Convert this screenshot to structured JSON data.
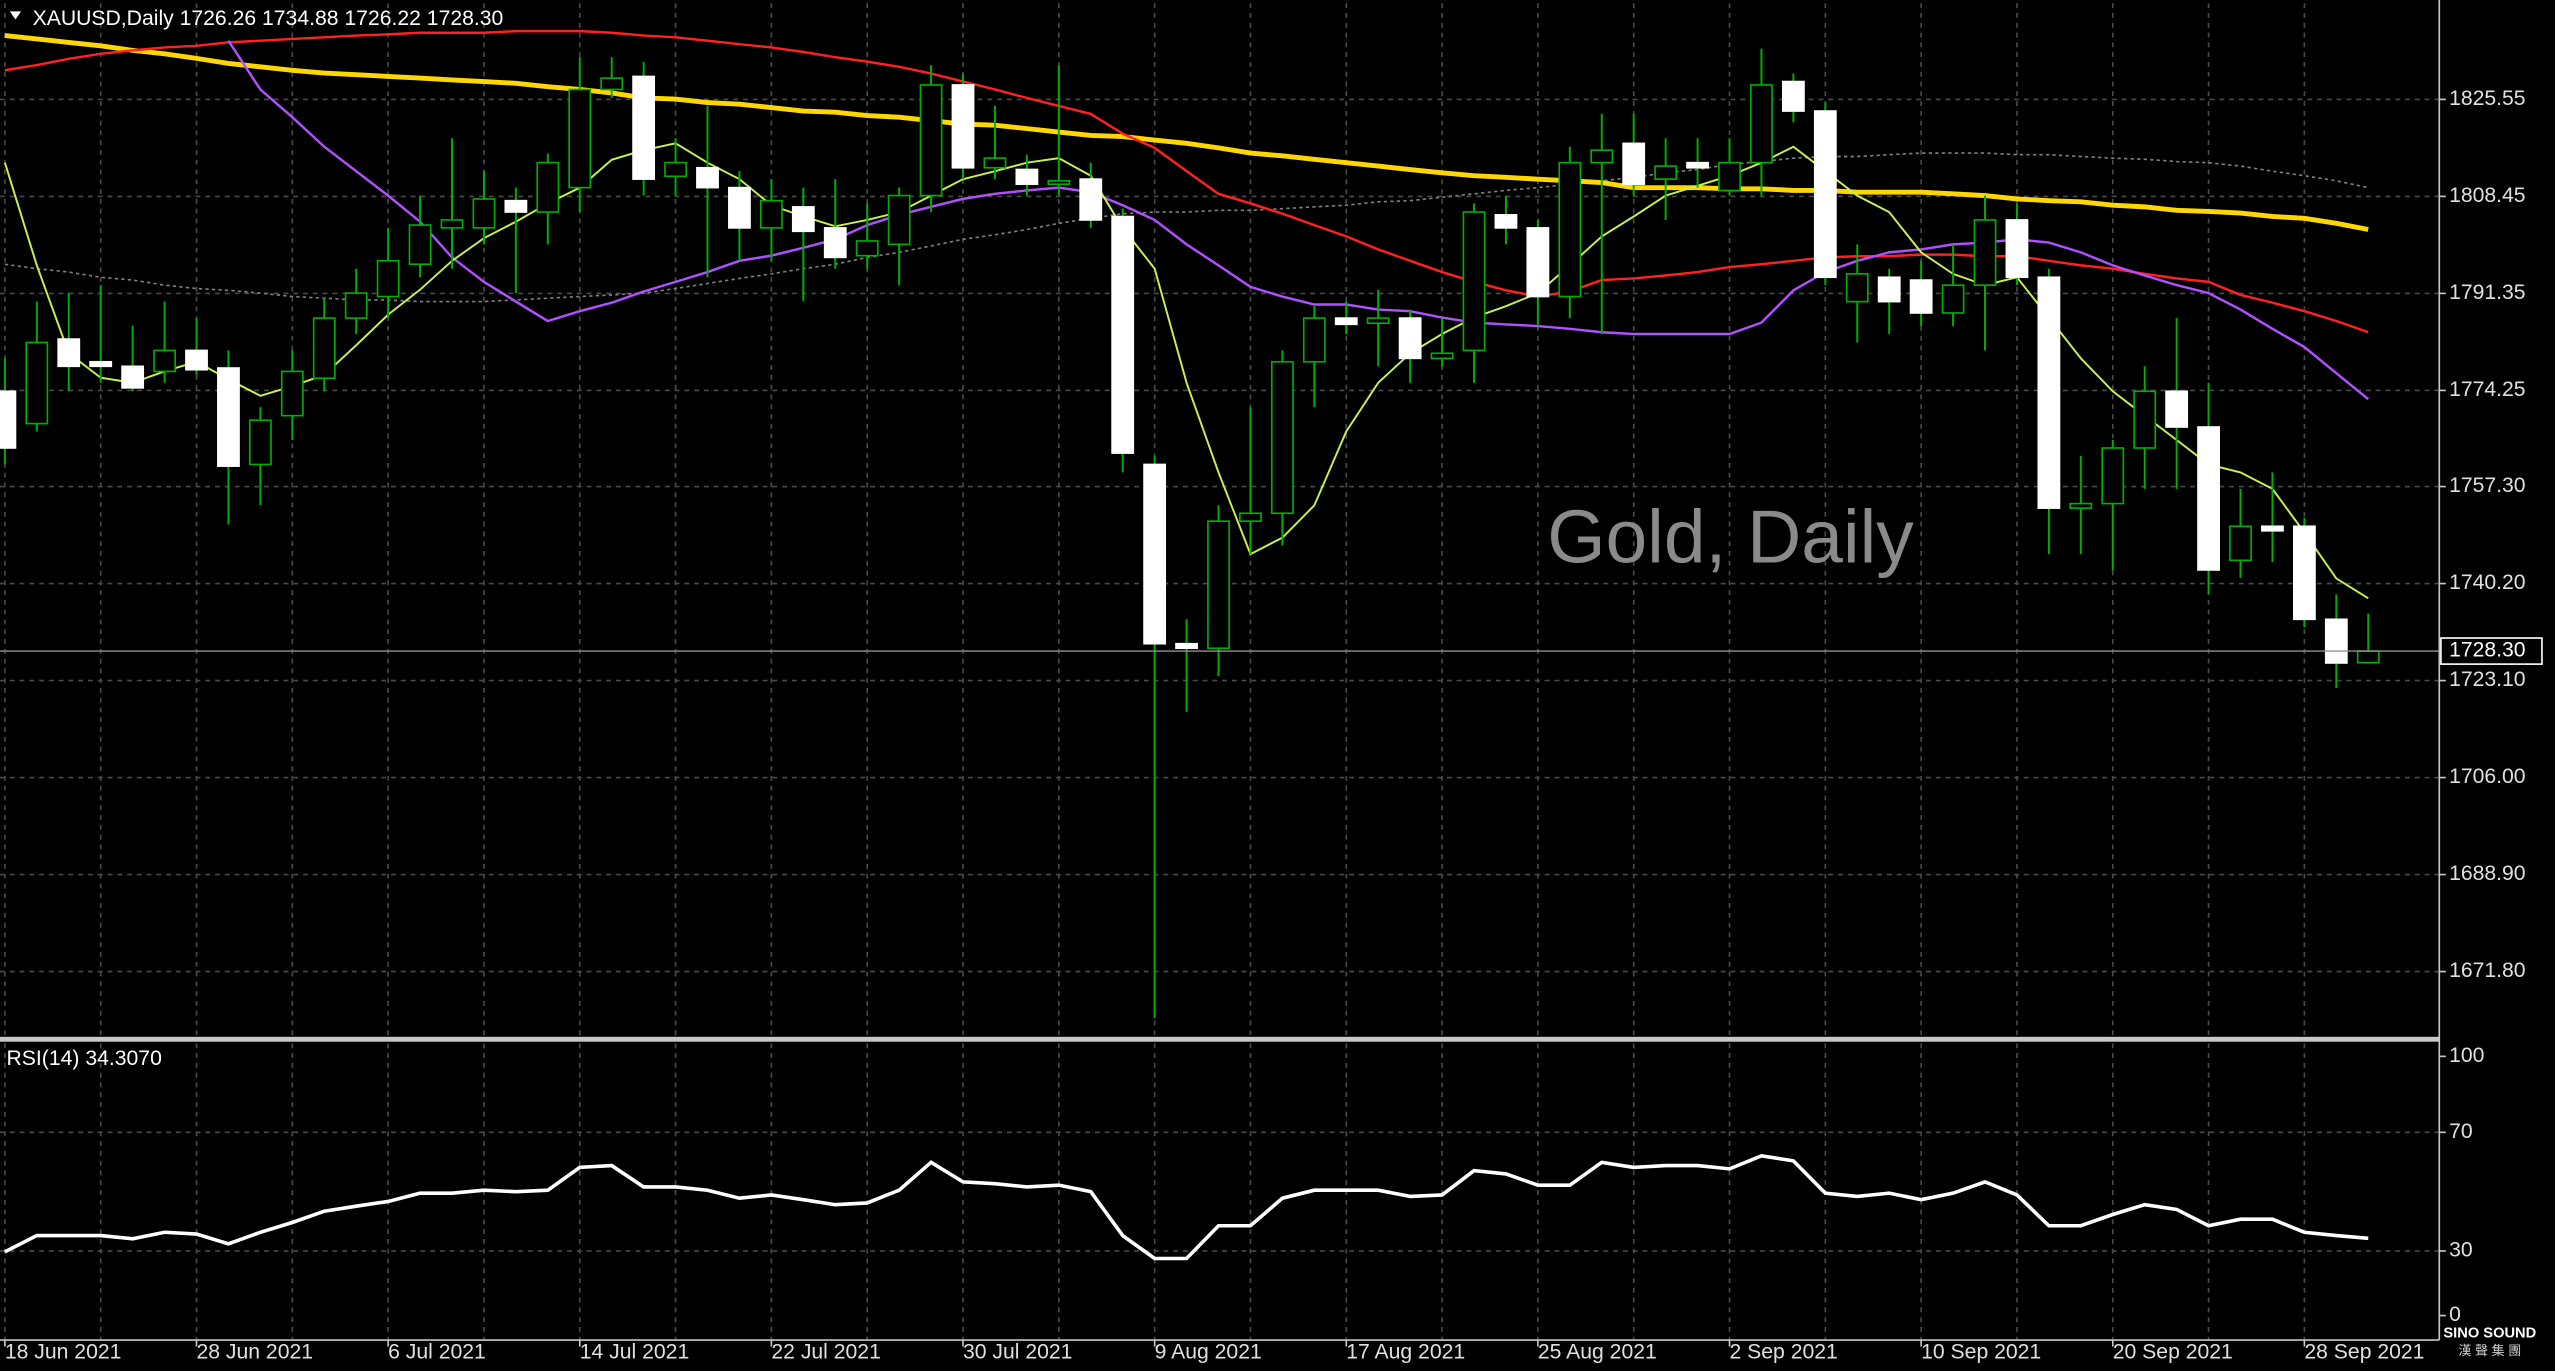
{
  "chart_data": {
    "type": "candlestick",
    "header": "XAUUSD,Daily  1726.26 1734.88 1726.22 1728.30",
    "watermark": "Gold, Daily",
    "logo": "SINO SOUND",
    "logo_sub": "漢 聲 集 團",
    "categories": [
      "18 Jun 2021",
      null,
      null,
      null,
      null,
      null,
      "28 Jun 2021",
      null,
      null,
      null,
      null,
      null,
      "6 Jul 2021",
      null,
      null,
      null,
      null,
      null,
      "14 Jul 2021",
      null,
      null,
      null,
      null,
      null,
      "22 Jul 2021",
      null,
      null,
      null,
      null,
      null,
      "30 Jul 2021",
      null,
      null,
      null,
      null,
      null,
      "9 Aug 2021",
      null,
      null,
      null,
      null,
      null,
      "17 Aug 2021",
      null,
      null,
      null,
      null,
      null,
      "25 Aug 2021",
      null,
      null,
      null,
      null,
      null,
      "2 Sep 2021",
      null,
      null,
      null,
      null,
      null,
      "10 Sep 2021",
      null,
      null,
      null,
      null,
      null,
      "20 Sep 2021",
      null,
      null,
      null,
      null,
      null,
      "28 Sep 2021",
      null,
      null
    ],
    "open": [
      1774.1,
      1768.4,
      1783.3,
      1779.3,
      1778.5,
      1777.6,
      1781.3,
      1778.2,
      1761.2,
      1769.8,
      1776.4,
      1787.0,
      1790.8,
      1796.5,
      1802.9,
      1802.9,
      1807.7,
      1805.7,
      1810.0,
      1827.3,
      1829.6,
      1812.0,
      1813.5,
      1810.0,
      1802.9,
      1806.6,
      1802.9,
      1798.0,
      1800.0,
      1808.6,
      1828.1,
      1813.5,
      1813.2,
      1810.6,
      1811.5,
      1804.9,
      1761.2,
      1729.6,
      1728.8,
      1751.2,
      1752.6,
      1779.3,
      1787.0,
      1786.1,
      1787.0,
      1779.9,
      1781.3,
      1805.2,
      1802.9,
      1790.8,
      1814.4,
      1817.8,
      1811.5,
      1814.4,
      1809.5,
      1814.4,
      1828.7,
      1823.5,
      1789.9,
      1794.2,
      1793.7,
      1787.9,
      1792.8,
      1804.3,
      1794.2,
      1753.5,
      1754.3,
      1764.1,
      1774.1,
      1767.8,
      1744.3,
      1750.3,
      1750.3,
      1733.9,
      1726.26
    ],
    "high": [
      1779.9,
      1789.9,
      1791.4,
      1792.8,
      1785.6,
      1789.9,
      1787.0,
      1781.3,
      1771.3,
      1781.3,
      1790.5,
      1795.7,
      1802.9,
      1808.6,
      1818.7,
      1812.9,
      1810.0,
      1816.0,
      1833.0,
      1833.0,
      1832.2,
      1818.7,
      1824.4,
      1812.9,
      1811.5,
      1810.0,
      1811.5,
      1807.2,
      1810.0,
      1831.6,
      1830.1,
      1824.4,
      1815.8,
      1831.6,
      1814.4,
      1806.3,
      1762.7,
      1733.9,
      1754.0,
      1771.3,
      1781.3,
      1789.1,
      1789.9,
      1792.0,
      1788.5,
      1787.0,
      1807.2,
      1808.6,
      1804.3,
      1817.2,
      1823.0,
      1823.0,
      1818.7,
      1818.7,
      1818.7,
      1834.5,
      1830.1,
      1825.0,
      1800.0,
      1795.7,
      1797.1,
      1800.0,
      1808.6,
      1807.2,
      1795.7,
      1762.7,
      1765.5,
      1778.5,
      1787.0,
      1775.6,
      1756.9,
      1759.8,
      1751.8,
      1738.3,
      1734.88
    ],
    "low": [
      1761.2,
      1767.0,
      1774.1,
      1775.6,
      1774.1,
      1775.6,
      1777.0,
      1750.6,
      1754.0,
      1765.5,
      1774.1,
      1784.2,
      1787.0,
      1794.2,
      1795.7,
      1800.0,
      1791.4,
      1800.0,
      1805.7,
      1825.8,
      1808.6,
      1808.6,
      1794.2,
      1797.1,
      1797.1,
      1790.0,
      1795.7,
      1795.7,
      1792.8,
      1805.7,
      1811.5,
      1811.5,
      1808.6,
      1808.6,
      1802.9,
      1759.8,
      1663.6,
      1717.6,
      1723.9,
      1745.4,
      1746.9,
      1771.3,
      1784.2,
      1778.5,
      1775.6,
      1778.5,
      1775.6,
      1800.0,
      1785.6,
      1787.0,
      1784.2,
      1808.6,
      1804.3,
      1810.0,
      1808.6,
      1808.6,
      1821.5,
      1792.8,
      1782.7,
      1784.2,
      1785.6,
      1785.6,
      1781.3,
      1792.8,
      1745.4,
      1745.4,
      1742.5,
      1756.9,
      1756.9,
      1738.3,
      1741.2,
      1744.0,
      1732.5,
      1721.8,
      1726.22
    ],
    "close": [
      1764.1,
      1782.7,
      1778.5,
      1778.5,
      1774.7,
      1781.3,
      1777.9,
      1760.9,
      1769.0,
      1777.6,
      1787.0,
      1791.4,
      1797.1,
      1803.4,
      1804.3,
      1808.0,
      1805.7,
      1814.4,
      1827.3,
      1829.3,
      1811.5,
      1814.4,
      1810.0,
      1802.9,
      1807.7,
      1802.3,
      1797.7,
      1800.6,
      1808.6,
      1828.1,
      1813.5,
      1815.2,
      1810.6,
      1811.2,
      1804.3,
      1763.2,
      1729.6,
      1728.8,
      1751.2,
      1752.6,
      1779.3,
      1787.0,
      1785.9,
      1787.0,
      1779.9,
      1780.8,
      1805.7,
      1802.9,
      1790.8,
      1814.4,
      1816.6,
      1810.6,
      1813.8,
      1813.5,
      1814.4,
      1828.1,
      1823.5,
      1794.2,
      1794.8,
      1789.9,
      1787.9,
      1792.8,
      1804.3,
      1794.2,
      1753.5,
      1754.3,
      1764.1,
      1774.1,
      1767.8,
      1742.6,
      1750.3,
      1749.5,
      1733.9,
      1726.2,
      1728.3
    ],
    "bull_color": "#000000",
    "bear_color": "#ffffff",
    "wick_color": "#00b000",
    "series": [
      {
        "color": "#808080",
        "values": [
          1796.5,
          1795.7,
          1795.1,
          1794.2,
          1793.7,
          1792.8,
          1792.2,
          1791.9,
          1791.4,
          1790.8,
          1790.5,
          1790.2,
          1790.2,
          1789.9,
          1789.9,
          1789.9,
          1790.2,
          1790.5,
          1790.8,
          1791.1,
          1791.4,
          1792.2,
          1793.1,
          1794.0,
          1794.8,
          1795.7,
          1796.5,
          1797.7,
          1798.6,
          1799.7,
          1800.9,
          1801.7,
          1802.6,
          1803.7,
          1804.6,
          1805.4,
          1805.7,
          1805.7,
          1806.0,
          1806.0,
          1806.3,
          1806.6,
          1806.9,
          1807.5,
          1807.7,
          1808.3,
          1808.9,
          1809.5,
          1810.0,
          1810.6,
          1811.2,
          1811.8,
          1812.6,
          1813.2,
          1814.1,
          1814.6,
          1815.2,
          1815.5,
          1815.5,
          1815.8,
          1816.1,
          1816.1,
          1816.1,
          1815.8,
          1815.8,
          1815.5,
          1815.2,
          1815.0,
          1814.6,
          1814.4,
          1813.8,
          1812.9,
          1812.1,
          1811.2,
          1810.0
        ]
      },
      {
        "color": "#ffd700",
        "values": [
          1836.8,
          1836.2,
          1835.6,
          1835.0,
          1834.2,
          1833.6,
          1832.8,
          1831.9,
          1831.3,
          1830.7,
          1830.2,
          1829.9,
          1829.6,
          1829.3,
          1829.0,
          1828.7,
          1828.4,
          1827.8,
          1827.3,
          1826.7,
          1825.8,
          1825.6,
          1825.0,
          1824.7,
          1824.1,
          1823.5,
          1823.3,
          1822.7,
          1822.4,
          1821.8,
          1821.2,
          1821.0,
          1820.4,
          1819.8,
          1819.2,
          1819.0,
          1818.4,
          1817.8,
          1817.0,
          1816.1,
          1815.6,
          1815.0,
          1814.4,
          1813.8,
          1813.2,
          1812.6,
          1812.1,
          1811.8,
          1811.5,
          1811.2,
          1810.9,
          1810.0,
          1810.0,
          1810.0,
          1809.8,
          1809.8,
          1809.5,
          1809.5,
          1809.2,
          1809.2,
          1809.2,
          1808.9,
          1808.6,
          1808.0,
          1807.7,
          1807.5,
          1806.9,
          1806.6,
          1806.0,
          1805.8,
          1805.5,
          1804.9,
          1804.6,
          1803.7,
          1802.6
        ]
      },
      {
        "color": "#ff2020",
        "values": [
          1830.7,
          1831.6,
          1832.7,
          1833.6,
          1834.2,
          1834.7,
          1835.0,
          1835.6,
          1835.9,
          1836.2,
          1836.5,
          1836.8,
          1837.0,
          1837.3,
          1837.3,
          1837.3,
          1837.6,
          1837.6,
          1837.6,
          1837.3,
          1836.8,
          1836.5,
          1835.9,
          1835.3,
          1834.7,
          1833.9,
          1833.0,
          1832.2,
          1831.3,
          1830.1,
          1828.7,
          1827.3,
          1825.8,
          1824.4,
          1823.0,
          1819.5,
          1817.0,
          1812.9,
          1808.9,
          1807.2,
          1805.4,
          1803.4,
          1801.4,
          1799.1,
          1797.1,
          1795.1,
          1793.4,
          1791.9,
          1790.8,
          1791.7,
          1793.7,
          1794.0,
          1794.5,
          1795.1,
          1796.0,
          1796.5,
          1797.1,
          1797.7,
          1797.9,
          1797.9,
          1798.2,
          1798.2,
          1797.9,
          1797.9,
          1797.1,
          1796.3,
          1795.7,
          1794.8,
          1794.0,
          1793.4,
          1791.1,
          1789.7,
          1788.2,
          1786.5,
          1784.5
        ]
      },
      {
        "color": "#b050ff",
        "values": [
          null,
          null,
          null,
          null,
          null,
          null,
          null,
          1835.9,
          1827.3,
          1822.4,
          1817.2,
          1812.9,
          1808.6,
          1804.0,
          1797.7,
          1793.4,
          1789.9,
          1786.5,
          1788.2,
          1789.7,
          1791.7,
          1793.4,
          1795.1,
          1797.1,
          1798.0,
          1799.4,
          1800.9,
          1803.4,
          1805.2,
          1806.6,
          1808.0,
          1808.9,
          1809.5,
          1810.0,
          1809.2,
          1806.9,
          1804.3,
          1800.0,
          1796.3,
          1792.5,
          1790.8,
          1789.4,
          1789.4,
          1788.5,
          1788.2,
          1787.1,
          1786.2,
          1785.9,
          1785.6,
          1785.1,
          1784.5,
          1784.2,
          1784.2,
          1784.2,
          1784.2,
          1786.2,
          1791.9,
          1795.1,
          1797.1,
          1798.6,
          1799.1,
          1800.0,
          1800.3,
          1800.9,
          1800.3,
          1798.6,
          1796.3,
          1794.5,
          1792.8,
          1791.4,
          1788.5,
          1785.1,
          1781.9,
          1777.3,
          1772.7
        ]
      },
      {
        "color": "#c8f050",
        "values": [
          1814.4,
          1796.3,
          1780.8,
          1776.5,
          1775.6,
          1777.6,
          1779.3,
          1776.2,
          1773.3,
          1775.0,
          1777.0,
          1782.2,
          1787.6,
          1792.0,
          1797.1,
          1801.1,
          1804.0,
          1807.2,
          1810.0,
          1814.9,
          1816.6,
          1817.8,
          1814.4,
          1811.5,
          1806.9,
          1804.9,
          1803.2,
          1804.3,
          1805.7,
          1808.6,
          1811.5,
          1812.9,
          1814.4,
          1815.2,
          1812.1,
          1802.9,
          1795.7,
          1775.6,
          1759.8,
          1745.4,
          1748.3,
          1754.0,
          1767.0,
          1775.6,
          1780.8,
          1784.2,
          1787.1,
          1789.1,
          1791.4,
          1796.3,
          1801.4,
          1804.9,
          1808.6,
          1810.3,
          1812.1,
          1814.4,
          1817.2,
          1812.9,
          1808.6,
          1805.7,
          1798.6,
          1794.8,
          1792.8,
          1794.2,
          1787.1,
          1779.9,
          1774.1,
          1769.8,
          1765.5,
          1761.2,
          1759.8,
          1756.9,
          1749.2,
          1741.1,
          1737.6
        ]
      }
    ],
    "ylim": [
      1660.3,
      1842.5
    ],
    "yticks": [
      1825.55,
      1808.45,
      1791.35,
      1774.25,
      {
        "value": 1757.3,
        "label": "1757.30"
      },
      {
        "value": 1740.2,
        "label": "1740.20"
      },
      {
        "value": 1723.1,
        "label": "1723.10"
      },
      {
        "value": 1706,
        "label": "1706.00"
      },
      {
        "value": 1688.9,
        "label": "1688.90"
      },
      {
        "value": 1671.8,
        "label": "1671.80"
      }
    ],
    "current_price": {
      "value": 1728.3,
      "label": "1728.30"
    },
    "grid": true,
    "indicator": {
      "type": "line",
      "label": "RSI(14) 34.3070",
      "color": "#ffffff",
      "ylim": [
        0,
        100
      ],
      "yticks": [
        100,
        70,
        30,
        0
      ],
      "values": [
        29.7,
        35.2,
        35.2,
        35.2,
        34.1,
        36.3,
        35.7,
        32.4,
        36.3,
        39.6,
        43.4,
        45.1,
        46.7,
        49.5,
        49.5,
        50.5,
        50.0,
        50.5,
        58.2,
        58.8,
        51.6,
        51.6,
        50.5,
        47.8,
        48.9,
        47.3,
        45.6,
        46.2,
        50.5,
        59.9,
        53.3,
        52.7,
        51.6,
        52.2,
        50.0,
        35.2,
        27.5,
        27.5,
        38.5,
        38.5,
        47.8,
        50.5,
        50.5,
        50.5,
        48.4,
        48.9,
        57.1,
        56.0,
        52.2,
        52.2,
        59.9,
        58.2,
        58.8,
        58.8,
        57.7,
        62.1,
        60.4,
        49.5,
        48.4,
        49.5,
        47.3,
        49.5,
        53.3,
        48.9,
        38.5,
        38.5,
        42.3,
        45.6,
        44.0,
        38.5,
        40.7,
        40.7,
        36.3,
        35.2,
        34.307
      ]
    }
  }
}
